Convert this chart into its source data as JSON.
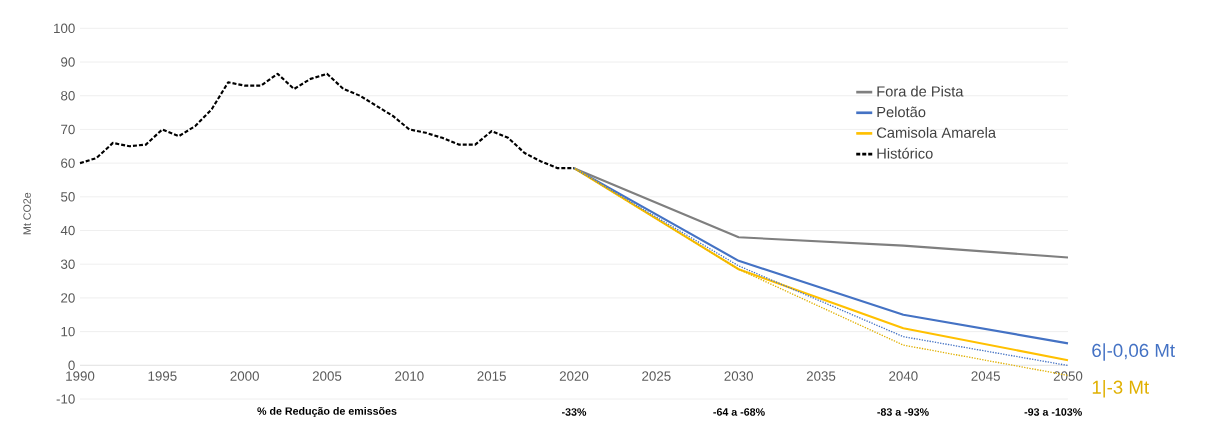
{
  "chart_data": {
    "type": "line",
    "ylabel": "Mt CO2e",
    "xlim": [
      1990,
      2050
    ],
    "ylim": [
      -10,
      100
    ],
    "xticks": [
      1990,
      1995,
      2000,
      2005,
      2010,
      2015,
      2020,
      2025,
      2030,
      2035,
      2040,
      2045,
      2050
    ],
    "yticks": [
      -10,
      0,
      10,
      20,
      30,
      40,
      50,
      60,
      70,
      80,
      90,
      100
    ],
    "grid": "y",
    "legend": "top right",
    "series": [
      {
        "name": "Fora de Pista",
        "color": "#7f7f7f",
        "line_style": "solid",
        "x": [
          2020,
          2030,
          2040,
          2050
        ],
        "values": [
          58.5,
          38,
          35.5,
          32
        ]
      },
      {
        "name": "Pelotão",
        "color": "#4472c4",
        "line_style": "solid",
        "x": [
          2020,
          2030,
          2040,
          2050
        ],
        "values": [
          58.5,
          31,
          15,
          6.5
        ]
      },
      {
        "name": "Camisola Amarela",
        "color": "#ffc000",
        "line_style": "solid",
        "x": [
          2020,
          2030,
          2040,
          2050
        ],
        "values": [
          58.5,
          28.5,
          11,
          1.5
        ]
      },
      {
        "name": "Histórico",
        "color": "#000000",
        "line_style": "dashed",
        "x": [
          1990,
          1991,
          1992,
          1993,
          1994,
          1995,
          1996,
          1997,
          1998,
          1999,
          2000,
          2001,
          2002,
          2003,
          2004,
          2005,
          2006,
          2007,
          2008,
          2009,
          2010,
          2011,
          2012,
          2013,
          2014,
          2015,
          2016,
          2017,
          2018,
          2019,
          2020
        ],
        "values": [
          60,
          61.5,
          66,
          65,
          65.5,
          70,
          68,
          71,
          76,
          84,
          83,
          83,
          86.5,
          82,
          85,
          86.5,
          82,
          80,
          77,
          74,
          70,
          69,
          67.5,
          65.5,
          65.5,
          69.5,
          67.5,
          63,
          60.5,
          58.5,
          58.5
        ]
      },
      {
        "color": "#4472c4",
        "line_style": "dotted",
        "x": [
          2020,
          2030,
          2040,
          2050
        ],
        "values": [
          58.5,
          29.5,
          8.5,
          -0.06
        ]
      },
      {
        "color": "#e0b000",
        "line_style": "dotted",
        "x": [
          2020,
          2030,
          2040,
          2050
        ],
        "values": [
          58.5,
          28.5,
          6,
          -3
        ]
      }
    ],
    "annotations": [
      "% de Redução de emissões",
      "-33%",
      "-64 a -68%",
      "-83 a -93%",
      "-93 a -103%",
      {
        "text": "6|-0,06 Mt",
        "x": 2050,
        "y": -0.06
      },
      {
        "text": "1|-3 Mt",
        "x": 2050,
        "y": -3
      }
    ]
  }
}
